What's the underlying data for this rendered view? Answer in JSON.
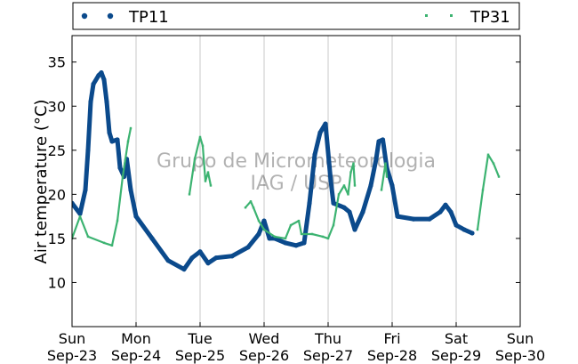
{
  "chart_data": {
    "type": "line",
    "title": "",
    "xlabel": "",
    "ylabel": "Air temperature (°C)",
    "ylim": [
      5,
      38
    ],
    "xlim": [
      "2012-09-23 00:00",
      "2012-09-30 00:00"
    ],
    "y_ticks": [
      10,
      15,
      20,
      25,
      30,
      35
    ],
    "x_ticks": [
      {
        "day": "Sun",
        "date": "Sep-23"
      },
      {
        "day": "Mon",
        "date": "Sep-24"
      },
      {
        "day": "Tue",
        "date": "Sep-25"
      },
      {
        "day": "Wed",
        "date": "Sep-26"
      },
      {
        "day": "Thu",
        "date": "Sep-27"
      },
      {
        "day": "Fri",
        "date": "Sep-28"
      },
      {
        "day": "Sat",
        "date": "Sep-29"
      },
      {
        "day": "Sun",
        "date": "Sep-30"
      }
    ],
    "grid": "vertical",
    "legend": "top",
    "watermark": [
      "Grupo de Micrometeorologia",
      "IAG / USP"
    ],
    "series": [
      {
        "name": "TP11",
        "color": "#0b4a8c",
        "marker": "circle",
        "points": [
          [
            "2012-09-23 00:00",
            19.0
          ],
          [
            "2012-09-23 03:00",
            17.8
          ],
          [
            "2012-09-23 05:00",
            20.5
          ],
          [
            "2012-09-23 06:00",
            25.0
          ],
          [
            "2012-09-23 07:00",
            30.5
          ],
          [
            "2012-09-23 08:00",
            32.5
          ],
          [
            "2012-09-23 10:00",
            33.5
          ],
          [
            "2012-09-23 11:00",
            33.8
          ],
          [
            "2012-09-23 12:00",
            33.0
          ],
          [
            "2012-09-23 13:00",
            30.5
          ],
          [
            "2012-09-23 14:00",
            27.0
          ],
          [
            "2012-09-23 15:00",
            26.0
          ],
          [
            "2012-09-23 17:00",
            26.2
          ],
          [
            "2012-09-23 18:00",
            23.0
          ],
          [
            "2012-09-23 19:30",
            22.0
          ],
          [
            "2012-09-23 20:30",
            24.0
          ],
          [
            "2012-09-23 22:00",
            20.5
          ],
          [
            "2012-09-24 00:00",
            17.5
          ],
          [
            "2012-09-24 06:00",
            15.0
          ],
          [
            "2012-09-24 12:00",
            12.5
          ],
          [
            "2012-09-24 18:00",
            11.5
          ],
          [
            "2012-09-24 21:00",
            12.8
          ],
          [
            "2012-09-25 00:00",
            13.5
          ],
          [
            "2012-09-25 03:00",
            12.2
          ],
          [
            "2012-09-25 06:00",
            12.8
          ],
          [
            "2012-09-25 12:00",
            13.0
          ],
          [
            "2012-09-25 18:00",
            14.0
          ],
          [
            "2012-09-25 22:00",
            15.5
          ],
          [
            "2012-09-26 00:00",
            17.0
          ],
          [
            "2012-09-26 02:00",
            15.0
          ],
          [
            "2012-09-26 04:00",
            15.0
          ],
          [
            "2012-09-26 08:00",
            14.5
          ],
          [
            "2012-09-26 12:00",
            14.2
          ],
          [
            "2012-09-26 15:00",
            14.5
          ],
          [
            "2012-09-26 17:00",
            19.0
          ],
          [
            "2012-09-26 19:00",
            24.5
          ],
          [
            "2012-09-26 21:00",
            27.0
          ],
          [
            "2012-09-26 23:00",
            28.0
          ],
          [
            "2012-09-27 01:00",
            21.5
          ],
          [
            "2012-09-27 02:00",
            19.0
          ],
          [
            "2012-09-27 06:00",
            18.5
          ],
          [
            "2012-09-27 08:00",
            18.0
          ],
          [
            "2012-09-27 10:00",
            16.0
          ],
          [
            "2012-09-27 13:00",
            18.0
          ],
          [
            "2012-09-27 16:00",
            21.0
          ],
          [
            "2012-09-27 18:00",
            24.0
          ],
          [
            "2012-09-27 19:00",
            26.0
          ],
          [
            "2012-09-27 20:30",
            26.2
          ],
          [
            "2012-09-27 22:00",
            23.0
          ],
          [
            "2012-09-28 00:00",
            21.0
          ],
          [
            "2012-09-28 02:00",
            17.5
          ],
          [
            "2012-09-28 08:00",
            17.2
          ],
          [
            "2012-09-28 14:00",
            17.2
          ],
          [
            "2012-09-28 18:00",
            18.0
          ],
          [
            "2012-09-28 20:00",
            18.8
          ],
          [
            "2012-09-28 22:00",
            18.0
          ],
          [
            "2012-09-29 00:00",
            16.5
          ],
          [
            "2012-09-29 03:00",
            16.0
          ],
          [
            "2012-09-29 06:00",
            15.6
          ]
        ]
      },
      {
        "name": "TP31",
        "color": "#3cb371",
        "marker": "dot",
        "points": [
          [
            "2012-09-23 00:00",
            15.0
          ],
          [
            "2012-09-23 03:00",
            17.5
          ],
          [
            "2012-09-23 06:00",
            15.2
          ],
          [
            "2012-09-23 12:00",
            14.5
          ],
          [
            "2012-09-23 15:00",
            14.2
          ],
          [
            "2012-09-23 17:00",
            17.0
          ],
          [
            "2012-09-23 19:00",
            22.0
          ],
          [
            "2012-09-23 21:00",
            26.0
          ],
          [
            "2012-09-23 22:00",
            27.5
          ],
          [
            "2012-09-23 22:01",
            null
          ],
          [
            "2012-09-24 20:00",
            20.0
          ],
          [
            "2012-09-24 22:00",
            24.0
          ],
          [
            "2012-09-25 00:00",
            26.5
          ],
          [
            "2012-09-25 01:00",
            25.5
          ],
          [
            "2012-09-25 02:00",
            21.5
          ],
          [
            "2012-09-25 03:00",
            22.5
          ],
          [
            "2012-09-25 04:00",
            21.0
          ],
          [
            "2012-09-25 04:01",
            null
          ],
          [
            "2012-09-25 17:00",
            18.5
          ],
          [
            "2012-09-25 19:00",
            19.2
          ],
          [
            "2012-09-25 20:00",
            18.5
          ],
          [
            "2012-09-25 22:00",
            17.0
          ],
          [
            "2012-09-26 00:00",
            16.0
          ],
          [
            "2012-09-26 04:00",
            15.2
          ],
          [
            "2012-09-26 08:00",
            15.0
          ],
          [
            "2012-09-26 10:00",
            16.5
          ],
          [
            "2012-09-26 13:00",
            17.0
          ],
          [
            "2012-09-26 14:00",
            15.5
          ],
          [
            "2012-09-26 18:00",
            15.5
          ],
          [
            "2012-09-26 22:00",
            15.2
          ],
          [
            "2012-09-27 00:00",
            15.0
          ],
          [
            "2012-09-27 02:00",
            16.5
          ],
          [
            "2012-09-27 04:00",
            20.0
          ],
          [
            "2012-09-27 06:00",
            21.0
          ],
          [
            "2012-09-27 07:30",
            20.0
          ],
          [
            "2012-09-27 08:30",
            22.5
          ],
          [
            "2012-09-27 09:30",
            23.5
          ],
          [
            "2012-09-27 10:00",
            21.0
          ],
          [
            "2012-09-27 10:01",
            null
          ],
          [
            "2012-09-27 20:00",
            20.5
          ],
          [
            "2012-09-27 21:30",
            23.5
          ],
          [
            "2012-09-27 22:00",
            22.0
          ],
          [
            "2012-09-27 22:01",
            null
          ],
          [
            "2012-09-29 08:00",
            16.0
          ],
          [
            "2012-09-29 10:00",
            20.5
          ],
          [
            "2012-09-29 12:00",
            24.5
          ],
          [
            "2012-09-29 14:00",
            23.5
          ],
          [
            "2012-09-29 16:00",
            22.0
          ]
        ]
      }
    ]
  }
}
